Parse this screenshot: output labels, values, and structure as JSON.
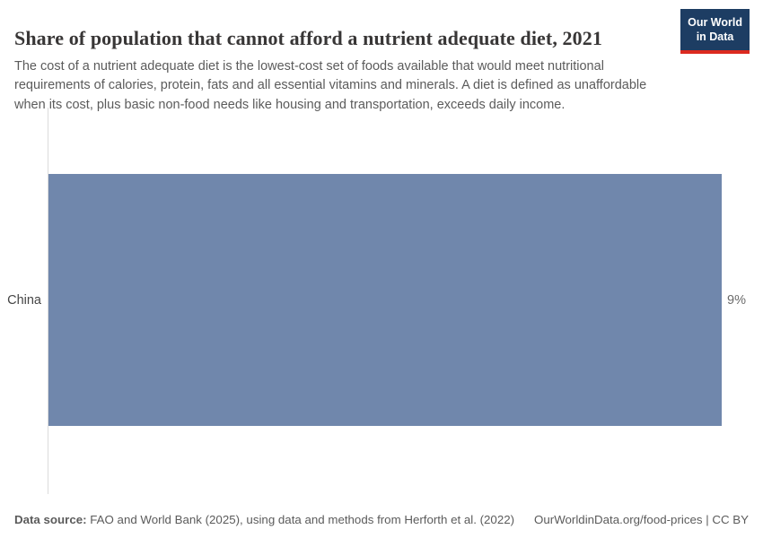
{
  "header": {
    "title": "Share of population that cannot afford a nutrient adequate diet, 2021",
    "subtitle": "The cost of a nutrient adequate diet is the lowest-cost set of foods available that would meet nutritional requirements of calories, protein, fats and all essential vitamins and minerals. A diet is defined as unaffordable when its cost, plus basic non-food needs like housing and transportation, exceeds daily income.",
    "logo": {
      "line1": "Our World",
      "line2": "in Data"
    }
  },
  "chart": {
    "entity_label": "China",
    "value_label": "9%"
  },
  "chart_data": {
    "type": "bar",
    "orientation": "horizontal",
    "title": "Share of population that cannot afford a nutrient adequate diet, 2021",
    "categories": [
      "China"
    ],
    "values": [
      9
    ],
    "value_suffix": "%",
    "xlim": [
      0,
      9
    ],
    "grid": false,
    "legend": false,
    "bar_color": "#7087ac"
  },
  "footer": {
    "source_label": "Data source:",
    "source_text": " FAO and World Bank (2025), using data and methods from Herforth et al. (2022)",
    "attribution": "OurWorldinData.org/food-prices | CC BY"
  },
  "colors": {
    "bar": "#7087ac",
    "logo_background": "#1d3d63",
    "logo_stripe": "#dc2a20",
    "title_text": "#383636",
    "subtitle_text": "#5b5b5b",
    "axis_line": "#dcdcdc"
  }
}
